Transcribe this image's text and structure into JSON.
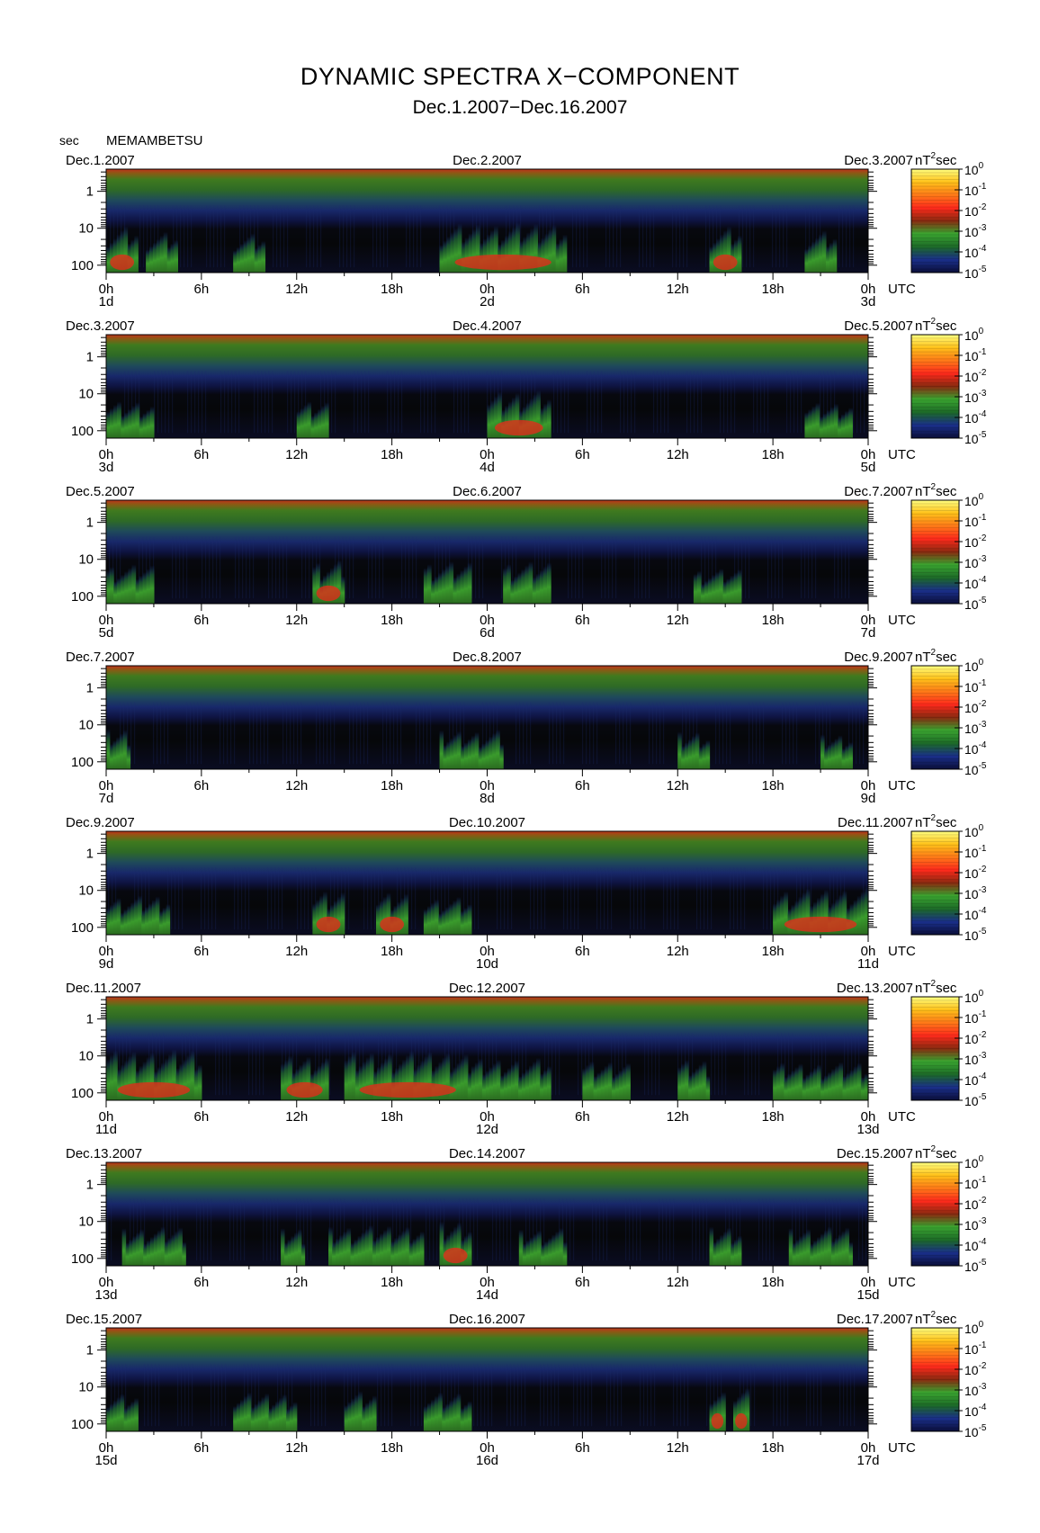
{
  "header": {
    "title": "DYNAMIC SPECTRA X−COMPONENT",
    "subtitle": "Dec.1.2007−Dec.16.2007",
    "axis_unit": "sec",
    "station": "MEMAMBETSU"
  },
  "chart_data": {
    "type": "heatmap",
    "x_unit_label": "UTC",
    "colorbar_unit": "nT",
    "colorbar_unit_exp": "2",
    "colorbar_unit_suffix": "sec",
    "colorbar_ticks": [
      {
        "base": "10",
        "exp": "0"
      },
      {
        "base": "10",
        "exp": "-1"
      },
      {
        "base": "10",
        "exp": "-2"
      },
      {
        "base": "10",
        "exp": "-3"
      },
      {
        "base": "10",
        "exp": "-4"
      },
      {
        "base": "10",
        "exp": "-5"
      }
    ],
    "colorbar_range": [
      -5,
      0
    ],
    "colorbar_colors": [
      "#0b0e3a",
      "#1a2f8a",
      "#1d6b28",
      "#3aa530",
      "#8a2a10",
      "#ff2a1c",
      "#ff7a18",
      "#ffc21a",
      "#ffff80"
    ],
    "y_period_ticks": [
      "1",
      "10",
      "100"
    ],
    "y_log_range": [
      -0.6,
      2.2
    ],
    "x_tick_labels": [
      "0h",
      "6h",
      "12h",
      "18h",
      "0h",
      "6h",
      "12h",
      "18h",
      "0h"
    ],
    "panels": [
      {
        "left_date": "Dec.1.2007",
        "mid_date": "Dec.2.2007",
        "right_date": "Dec.3.2007",
        "day_labels": [
          "1d",
          "2d",
          "3d"
        ],
        "events": [
          [
            0,
            2,
            0.85
          ],
          [
            2.5,
            4.5,
            0.65
          ],
          [
            8,
            10,
            0.6
          ],
          [
            21,
            29,
            0.95
          ],
          [
            38,
            40,
            0.85
          ],
          [
            44,
            46,
            0.7
          ]
        ]
      },
      {
        "left_date": "Dec.3.2007",
        "mid_date": "Dec.4.2007",
        "right_date": "Dec.5.2007",
        "day_labels": [
          "3d",
          "4d",
          "5d"
        ],
        "events": [
          [
            0,
            3,
            0.55
          ],
          [
            12,
            14,
            0.55
          ],
          [
            24,
            28,
            0.9
          ],
          [
            44,
            47,
            0.5
          ]
        ]
      },
      {
        "left_date": "Dec.5.2007",
        "mid_date": "Dec.6.2007",
        "right_date": "Dec.7.2007",
        "day_labels": [
          "5d",
          "6d",
          "7d"
        ],
        "events": [
          [
            0,
            3,
            0.6
          ],
          [
            13,
            15,
            0.75
          ],
          [
            20,
            23,
            0.7
          ],
          [
            25,
            28,
            0.7
          ],
          [
            37,
            40,
            0.45
          ]
        ]
      },
      {
        "left_date": "Dec.7.2007",
        "mid_date": "Dec.8.2007",
        "right_date": "Dec.9.2007",
        "day_labels": [
          "7d",
          "8d",
          "9d"
        ],
        "events": [
          [
            0,
            1.5,
            0.65
          ],
          [
            21,
            25,
            0.6
          ],
          [
            36,
            38,
            0.55
          ],
          [
            45,
            47,
            0.45
          ]
        ]
      },
      {
        "left_date": "Dec.9.2007",
        "mid_date": "Dec.10.2007",
        "right_date": "Dec.11.2007",
        "day_labels": [
          "9d",
          "10d",
          "11d"
        ],
        "events": [
          [
            0,
            4,
            0.6
          ],
          [
            13,
            15,
            0.85
          ],
          [
            17,
            19,
            0.8
          ],
          [
            20,
            23,
            0.55
          ],
          [
            42,
            48,
            0.85
          ]
        ]
      },
      {
        "left_date": "Dec.11.2007",
        "mid_date": "Dec.12.2007",
        "right_date": "Dec.13.2007",
        "day_labels": [
          "11d",
          "12d",
          "13d"
        ],
        "events": [
          [
            0,
            6,
            1.0
          ],
          [
            11,
            14,
            0.8
          ],
          [
            15,
            23,
            0.95
          ],
          [
            23,
            28,
            0.7
          ],
          [
            30,
            33,
            0.6
          ],
          [
            36,
            38,
            0.65
          ],
          [
            42,
            48,
            0.55
          ]
        ]
      },
      {
        "left_date": "Dec.13.2007",
        "mid_date": "Dec.14.2007",
        "right_date": "Dec.15.2007",
        "day_labels": [
          "13d",
          "14d",
          "15d"
        ],
        "events": [
          [
            1,
            5,
            0.6
          ],
          [
            11,
            12.5,
            0.6
          ],
          [
            14,
            20,
            0.65
          ],
          [
            21,
            23,
            0.85
          ],
          [
            26,
            29,
            0.55
          ],
          [
            38,
            40,
            0.65
          ],
          [
            43,
            47,
            0.6
          ]
        ]
      },
      {
        "left_date": "Dec.15.2007",
        "mid_date": "Dec.16.2007",
        "right_date": "Dec.17.2007",
        "day_labels": [
          "15d",
          "16d",
          "17d"
        ],
        "events": [
          [
            0,
            2,
            0.55
          ],
          [
            8,
            12,
            0.6
          ],
          [
            15,
            17,
            0.65
          ],
          [
            20,
            23,
            0.6
          ],
          [
            38,
            39,
            0.75
          ],
          [
            39.5,
            40.5,
            0.9
          ]
        ]
      }
    ]
  }
}
